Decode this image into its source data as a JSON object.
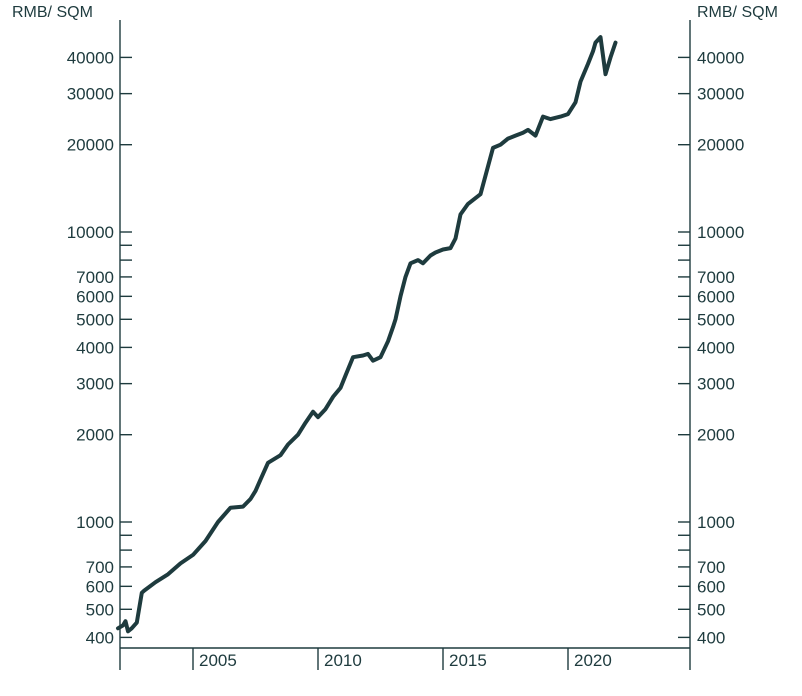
{
  "chart_data": {
    "type": "line",
    "title": "",
    "y_scale": "log",
    "grid": false,
    "y_unit_left": "RMB/ SQM",
    "y_unit_right": "RMB/ SQM",
    "y_range": [
      370,
      49000
    ],
    "x_range": [
      2001.0,
      2024.0
    ],
    "y_tick_labels": [
      "400",
      "500",
      "600",
      "700",
      "1000",
      "2000",
      "3000",
      "4000",
      "5000",
      "6000",
      "7000",
      "10000",
      "20000",
      "30000",
      "40000"
    ],
    "y_minor_ticks": [
      800,
      900,
      8000,
      9000
    ],
    "x_tick_labels": [
      "2005",
      "2010",
      "2015",
      "2020"
    ],
    "series": [
      {
        "color": "#1e3b3e",
        "x": [
          2002.0,
          2002.2,
          2002.3,
          2002.4,
          2002.55,
          2002.75,
          2002.95,
          2003.05,
          2003.5,
          2004.0,
          2004.5,
          2005.0,
          2005.5,
          2006.0,
          2006.5,
          2007.0,
          2007.3,
          2007.5,
          2007.7,
          2008.0,
          2008.5,
          2008.8,
          2009.2,
          2009.5,
          2009.8,
          2010.0,
          2010.3,
          2010.6,
          2010.9,
          2011.1,
          2011.4,
          2011.8,
          2012.0,
          2012.2,
          2012.5,
          2012.8,
          2013.0,
          2013.1,
          2013.3,
          2013.5,
          2013.7,
          2014.0,
          2014.2,
          2014.5,
          2014.7,
          2015.0,
          2015.3,
          2015.5,
          2015.7,
          2016.0,
          2016.5,
          2017.0,
          2017.3,
          2017.6,
          2017.9,
          2018.2,
          2018.4,
          2018.7,
          2019.0,
          2019.3,
          2019.7,
          2020.0,
          2020.3,
          2020.5,
          2020.8,
          2021.0,
          2021.1,
          2021.3,
          2021.5,
          2021.7,
          2021.9
        ],
        "y": [
          430,
          440,
          455,
          420,
          430,
          450,
          570,
          580,
          620,
          660,
          720,
          770,
          860,
          1000,
          1120,
          1130,
          1200,
          1280,
          1400,
          1600,
          1700,
          1850,
          2000,
          2200,
          2400,
          2300,
          2450,
          2700,
          2900,
          3200,
          3700,
          3750,
          3800,
          3600,
          3700,
          4200,
          4700,
          5000,
          6000,
          7000,
          7800,
          8000,
          7800,
          8300,
          8500,
          8700,
          8800,
          9500,
          11500,
          12500,
          13500,
          19500,
          20000,
          21000,
          21500,
          22000,
          22500,
          21500,
          25000,
          24500,
          25000,
          25500,
          28000,
          33000,
          38000,
          42000,
          45000,
          47000,
          35000,
          40000,
          45000
        ]
      }
    ]
  }
}
